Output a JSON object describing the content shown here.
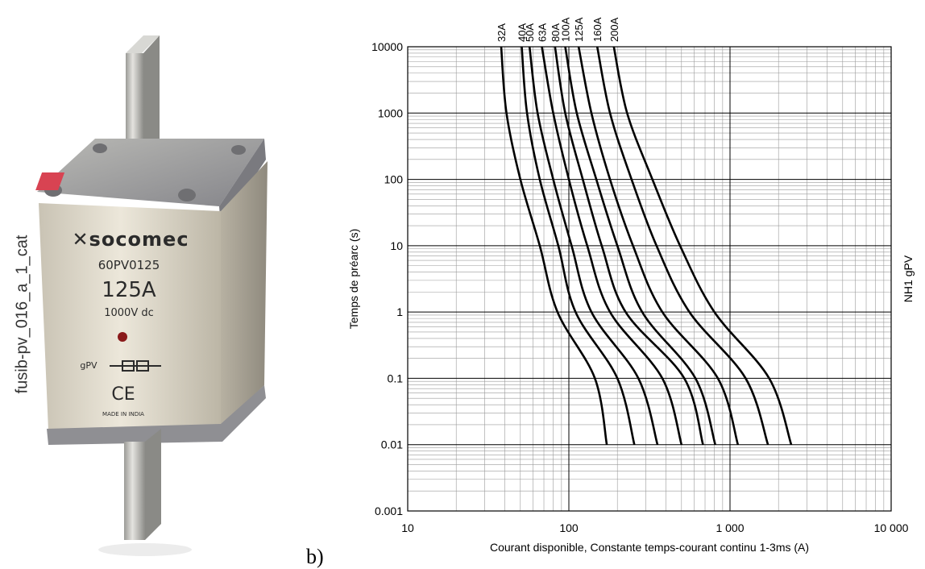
{
  "photo": {
    "side_caption": "fusib-pv_016_a_1_cat",
    "brand": "socomec",
    "reference": "60PV0125",
    "rating": "125A",
    "voltage": "1000V dc",
    "category": "gPV",
    "ce_mark": "CE",
    "origin": "MADE IN INDIA"
  },
  "panel_label": "b)",
  "chart_data": {
    "type": "line",
    "title": "",
    "xlabel": "Courant disponible, Constante temps-courant continu 1-3ms (A)",
    "ylabel": "Temps de préarc (s)",
    "right_label": "NH1 gPV",
    "x_scale": "log",
    "y_scale": "log",
    "xlim": [
      10,
      10000
    ],
    "ylim": [
      0.001,
      10000
    ],
    "grid": true,
    "x_tick_labels": [
      "10",
      "100",
      "1 000",
      "10 000"
    ],
    "y_tick_labels": [
      "0.001",
      "0.01",
      "0.1",
      "1",
      "10",
      "100",
      "1000",
      "10000"
    ],
    "series": [
      {
        "name": "32A",
        "points": [
          [
            38,
            10000
          ],
          [
            41,
            1000
          ],
          [
            50,
            100
          ],
          [
            66,
            10
          ],
          [
            85,
            1
          ],
          [
            145,
            0.1
          ],
          [
            172,
            0.01
          ]
        ]
      },
      {
        "name": "40A",
        "points": [
          [
            51,
            10000
          ],
          [
            55,
            1000
          ],
          [
            66,
            100
          ],
          [
            86,
            10
          ],
          [
            110,
            1
          ],
          [
            200,
            0.1
          ],
          [
            255,
            0.01
          ]
        ]
      },
      {
        "name": "50A",
        "points": [
          [
            57,
            10000
          ],
          [
            64,
            1000
          ],
          [
            80,
            100
          ],
          [
            104,
            10
          ],
          [
            138,
            1
          ],
          [
            270,
            0.1
          ],
          [
            355,
            0.01
          ]
        ]
      },
      {
        "name": "63A",
        "points": [
          [
            68,
            10000
          ],
          [
            80,
            1000
          ],
          [
            100,
            100
          ],
          [
            130,
            10
          ],
          [
            180,
            1
          ],
          [
            380,
            0.1
          ],
          [
            500,
            0.01
          ]
        ]
      },
      {
        "name": "80A",
        "points": [
          [
            82,
            10000
          ],
          [
            95,
            1000
          ],
          [
            122,
            100
          ],
          [
            160,
            10
          ],
          [
            225,
            1
          ],
          [
            520,
            0.1
          ],
          [
            680,
            0.01
          ]
        ]
      },
      {
        "name": "100A",
        "points": [
          [
            95,
            10000
          ],
          [
            112,
            1000
          ],
          [
            148,
            100
          ],
          [
            200,
            10
          ],
          [
            285,
            1
          ],
          [
            610,
            0.1
          ],
          [
            810,
            0.01
          ]
        ]
      },
      {
        "name": "125A",
        "points": [
          [
            115,
            10000
          ],
          [
            138,
            1000
          ],
          [
            180,
            100
          ],
          [
            250,
            10
          ],
          [
            380,
            1
          ],
          [
            840,
            0.1
          ],
          [
            1120,
            0.01
          ]
        ]
      },
      {
        "name": "160A",
        "points": [
          [
            150,
            10000
          ],
          [
            180,
            1000
          ],
          [
            245,
            100
          ],
          [
            350,
            10
          ],
          [
            560,
            1
          ],
          [
            1250,
            0.1
          ],
          [
            1720,
            0.01
          ]
        ]
      },
      {
        "name": "200A",
        "points": [
          [
            190,
            10000
          ],
          [
            230,
            1000
          ],
          [
            330,
            100
          ],
          [
            490,
            10
          ],
          [
            800,
            1
          ],
          [
            1750,
            0.1
          ],
          [
            2400,
            0.01
          ]
        ]
      }
    ]
  }
}
